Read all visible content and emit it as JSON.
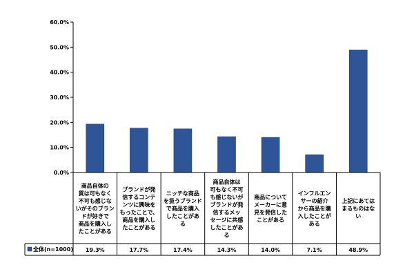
{
  "chart_data": {
    "type": "bar",
    "categories": [
      [
        "商品自体の",
        "質は可もなく",
        "不可も感じな",
        "いがそのブラン",
        "ドが好きで",
        "商品を購入し",
        "たことがある"
      ],
      [
        "ブランドが発",
        "信するコンテ",
        "ンツに興味を",
        "もったことで、",
        "商品を購入し",
        "たことがある"
      ],
      [
        "ニッチな商品",
        "を扱うブランド",
        "で商品を購入",
        "したことがあ",
        "る"
      ],
      [
        "商品自体は",
        "可もなく不可",
        "も感じないが",
        "ブランドが発",
        "信するメッ",
        "セージに共感",
        "したことがあ",
        "る"
      ],
      [
        "商品について",
        "メーカーに意",
        "見を発信した",
        "ことがある"
      ],
      [
        "インフルエン",
        "サーの紹介",
        "から商品を購",
        "入したことが",
        "ある"
      ],
      [
        "上記にあては",
        "まるものはな",
        "い"
      ]
    ],
    "series": [
      {
        "name": "全体(n=1000)",
        "values": [
          19.3,
          17.7,
          17.4,
          14.3,
          14.0,
          7.1,
          48.9
        ],
        "labels": [
          "19.3%",
          "17.7%",
          "17.4%",
          "14.3%",
          "14.0%",
          "7.1%",
          "48.9%"
        ],
        "color": "#2E5597"
      }
    ],
    "ylim": [
      0,
      60
    ],
    "yticks": [
      "0.0%",
      "10.0%",
      "20.0%",
      "30.0%",
      "40.0%",
      "50.0%",
      "60.0%"
    ],
    "grid": false,
    "legend": "data-table-left"
  }
}
